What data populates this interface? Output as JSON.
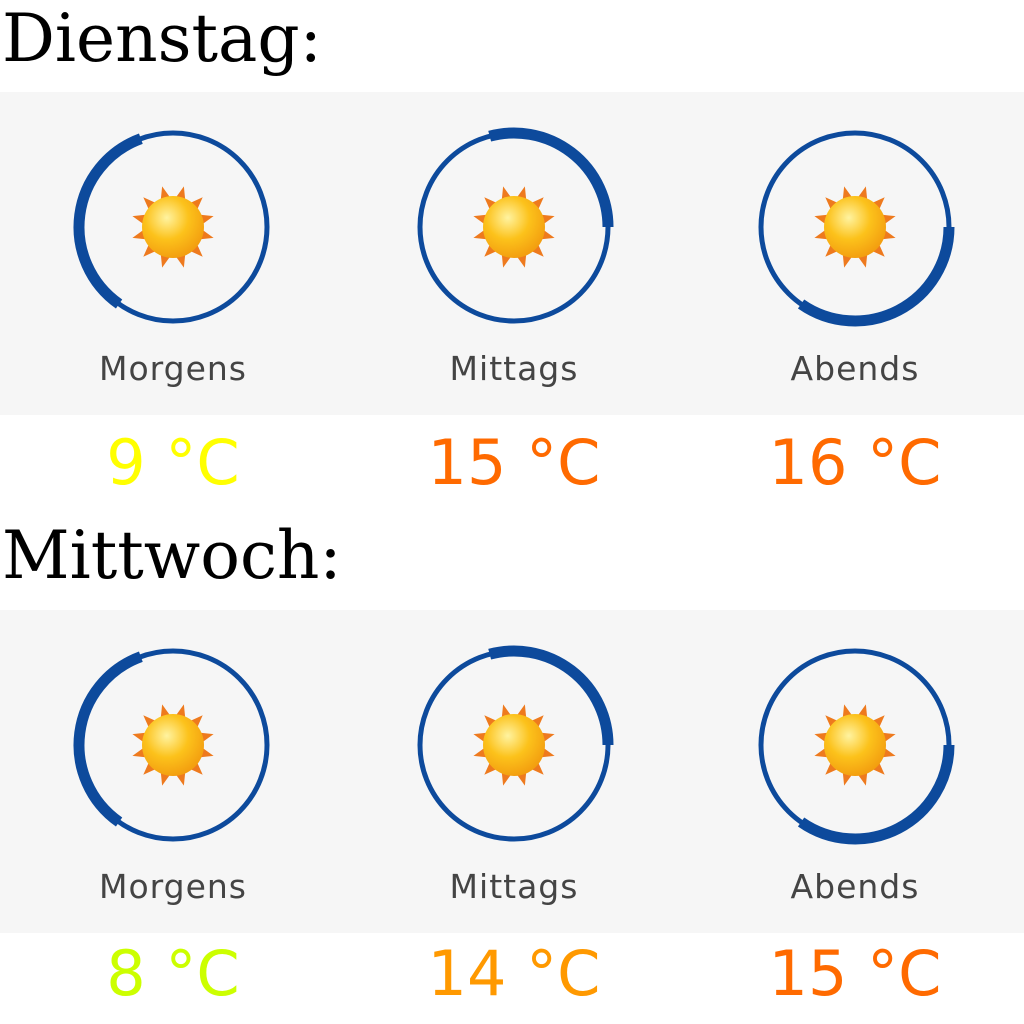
{
  "days": [
    {
      "title": "Dienstag:",
      "slots": [
        {
          "label": "Morgens",
          "temp": "9 °C",
          "color": "#ffff00",
          "icon": "sun-icon",
          "arc": [
            215,
            340
          ]
        },
        {
          "label": "Mittags",
          "temp": "15 °C",
          "color": "#ff6a00",
          "icon": "sun-icon",
          "arc": [
            345,
            450
          ]
        },
        {
          "label": "Abends",
          "temp": "16 °C",
          "color": "#ff6a00",
          "icon": "sun-icon",
          "arc": [
            90,
            215
          ]
        }
      ]
    },
    {
      "title": "Mittwoch:",
      "slots": [
        {
          "label": "Morgens",
          "temp": "8 °C",
          "color": "#ccff00",
          "icon": "sun-icon",
          "arc": [
            215,
            340
          ]
        },
        {
          "label": "Mittags",
          "temp": "14 °C",
          "color": "#ff9900",
          "icon": "sun-icon",
          "arc": [
            345,
            450
          ]
        },
        {
          "label": "Abends",
          "temp": "15 °C",
          "color": "#ff6a00",
          "icon": "sun-icon",
          "arc": [
            90,
            215
          ]
        }
      ]
    }
  ],
  "colors": {
    "ring": "#0d4a9c",
    "panel": "#f6f6f6"
  }
}
